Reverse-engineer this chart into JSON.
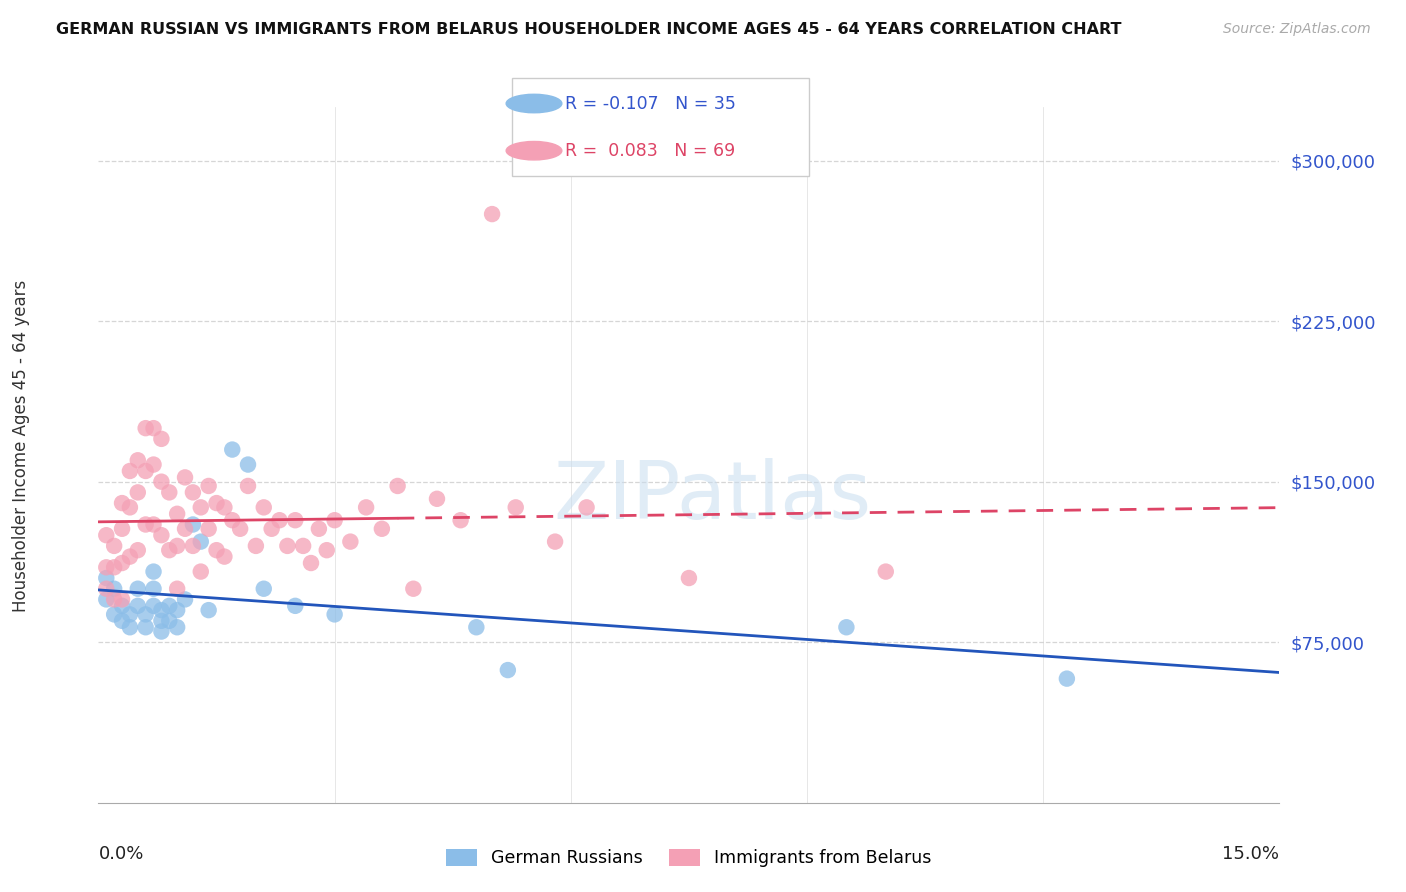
{
  "title": "GERMAN RUSSIAN VS IMMIGRANTS FROM BELARUS HOUSEHOLDER INCOME AGES 45 - 64 YEARS CORRELATION CHART",
  "source": "Source: ZipAtlas.com",
  "ylabel": "Householder Income Ages 45 - 64 years",
  "ytick_values": [
    75000,
    150000,
    225000,
    300000
  ],
  "xlim": [
    0.0,
    0.15
  ],
  "ylim": [
    0,
    325000
  ],
  "legend_blue_r": "-0.107",
  "legend_blue_n": "35",
  "legend_pink_r": "0.083",
  "legend_pink_n": "69",
  "legend_label_blue": "German Russians",
  "legend_label_pink": "Immigrants from Belarus",
  "blue_color": "#8BBDE8",
  "pink_color": "#F4A0B5",
  "blue_line_color": "#2255BB",
  "pink_line_color": "#DD4466",
  "watermark": "ZIPatlas",
  "blue_scatter_x": [
    0.001,
    0.001,
    0.002,
    0.002,
    0.003,
    0.003,
    0.004,
    0.004,
    0.005,
    0.005,
    0.006,
    0.006,
    0.007,
    0.007,
    0.007,
    0.008,
    0.008,
    0.008,
    0.009,
    0.009,
    0.01,
    0.01,
    0.011,
    0.012,
    0.013,
    0.014,
    0.017,
    0.019,
    0.021,
    0.025,
    0.03,
    0.048,
    0.052,
    0.095,
    0.123
  ],
  "blue_scatter_y": [
    105000,
    95000,
    100000,
    88000,
    92000,
    85000,
    88000,
    82000,
    100000,
    92000,
    88000,
    82000,
    108000,
    100000,
    92000,
    90000,
    85000,
    80000,
    92000,
    85000,
    90000,
    82000,
    95000,
    130000,
    122000,
    90000,
    165000,
    158000,
    100000,
    92000,
    88000,
    82000,
    62000,
    82000,
    58000
  ],
  "pink_scatter_x": [
    0.001,
    0.001,
    0.001,
    0.002,
    0.002,
    0.002,
    0.003,
    0.003,
    0.003,
    0.003,
    0.004,
    0.004,
    0.004,
    0.005,
    0.005,
    0.005,
    0.006,
    0.006,
    0.006,
    0.007,
    0.007,
    0.007,
    0.008,
    0.008,
    0.008,
    0.009,
    0.009,
    0.01,
    0.01,
    0.01,
    0.011,
    0.011,
    0.012,
    0.012,
    0.013,
    0.013,
    0.014,
    0.014,
    0.015,
    0.015,
    0.016,
    0.016,
    0.017,
    0.018,
    0.019,
    0.02,
    0.021,
    0.022,
    0.023,
    0.024,
    0.025,
    0.026,
    0.027,
    0.028,
    0.029,
    0.03,
    0.032,
    0.034,
    0.036,
    0.038,
    0.04,
    0.043,
    0.046,
    0.05,
    0.053,
    0.058,
    0.062,
    0.075,
    0.1
  ],
  "pink_scatter_y": [
    100000,
    110000,
    125000,
    120000,
    110000,
    95000,
    140000,
    128000,
    112000,
    95000,
    155000,
    138000,
    115000,
    160000,
    145000,
    118000,
    175000,
    155000,
    130000,
    175000,
    158000,
    130000,
    170000,
    150000,
    125000,
    145000,
    118000,
    135000,
    120000,
    100000,
    152000,
    128000,
    145000,
    120000,
    138000,
    108000,
    148000,
    128000,
    140000,
    118000,
    138000,
    115000,
    132000,
    128000,
    148000,
    120000,
    138000,
    128000,
    132000,
    120000,
    132000,
    120000,
    112000,
    128000,
    118000,
    132000,
    122000,
    138000,
    128000,
    148000,
    100000,
    142000,
    132000,
    275000,
    138000,
    122000,
    138000,
    105000,
    108000
  ]
}
